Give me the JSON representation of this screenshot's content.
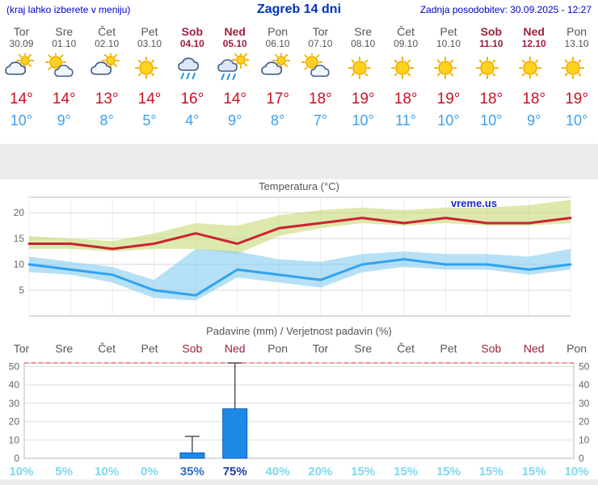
{
  "header": {
    "menu_hint": "(kraj lahko izberete v meniju)",
    "title": "Zagreb 14 dni",
    "last_updated": "Zadnja posodobitev: 30.09.2025 - 12:27"
  },
  "colors": {
    "accent_blue": "#0000cc",
    "max_temp": "#cc1122",
    "min_temp": "#3aa0f0",
    "weekend": "#a0203c",
    "weekday": "#555555",
    "band_gray": "#ececec"
  },
  "days": [
    {
      "name": "Tor",
      "date": "30.09",
      "weekend": false,
      "icon": "mostly-cloudy",
      "tmax_label": "14°",
      "tmin_label": "10°",
      "prob_label": "10%",
      "prob_color": "#7dd8ef"
    },
    {
      "name": "Sre",
      "date": "01.10",
      "weekend": false,
      "icon": "partly-cloudy",
      "tmax_label": "14°",
      "tmin_label": "9°",
      "prob_label": "5%",
      "prob_color": "#7dd8ef"
    },
    {
      "name": "Čet",
      "date": "02.10",
      "weekend": false,
      "icon": "mostly-cloudy",
      "tmax_label": "13°",
      "tmin_label": "8°",
      "prob_label": "10%",
      "prob_color": "#7dd8ef"
    },
    {
      "name": "Pet",
      "date": "03.10",
      "weekend": false,
      "icon": "sunny",
      "tmax_label": "14°",
      "tmin_label": "5°",
      "prob_label": "0%",
      "prob_color": "#7dd8ef"
    },
    {
      "name": "Sob",
      "date": "04.10",
      "weekend": true,
      "icon": "rain",
      "tmax_label": "16°",
      "tmin_label": "4°",
      "prob_label": "35%",
      "prob_color": "#2f6fc4"
    },
    {
      "name": "Ned",
      "date": "05.10",
      "weekend": true,
      "icon": "rain-sun",
      "tmax_label": "14°",
      "tmin_label": "9°",
      "prob_label": "75%",
      "prob_color": "#1c3fa8"
    },
    {
      "name": "Pon",
      "date": "06.10",
      "weekend": false,
      "icon": "mostly-cloudy",
      "tmax_label": "17°",
      "tmin_label": "8°",
      "prob_label": "40%",
      "prob_color": "#7dd8ef"
    },
    {
      "name": "Tor",
      "date": "07.10",
      "weekend": false,
      "icon": "partly-cloudy",
      "tmax_label": "18°",
      "tmin_label": "7°",
      "prob_label": "20%",
      "prob_color": "#7dd8ef"
    },
    {
      "name": "Sre",
      "date": "08.10",
      "weekend": false,
      "icon": "sunny",
      "tmax_label": "19°",
      "tmin_label": "10°",
      "prob_label": "15%",
      "prob_color": "#7dd8ef"
    },
    {
      "name": "Čet",
      "date": "09.10",
      "weekend": false,
      "icon": "sunny",
      "tmax_label": "18°",
      "tmin_label": "11°",
      "prob_label": "15%",
      "prob_color": "#7dd8ef"
    },
    {
      "name": "Pet",
      "date": "10.10",
      "weekend": false,
      "icon": "sunny",
      "tmax_label": "19°",
      "tmin_label": "10°",
      "prob_label": "15%",
      "prob_color": "#7dd8ef"
    },
    {
      "name": "Sob",
      "date": "11.10",
      "weekend": true,
      "icon": "sunny",
      "tmax_label": "18°",
      "tmin_label": "10°",
      "prob_label": "15%",
      "prob_color": "#7dd8ef"
    },
    {
      "name": "Ned",
      "date": "12.10",
      "weekend": true,
      "icon": "sunny",
      "tmax_label": "18°",
      "tmin_label": "9°",
      "prob_label": "15%",
      "prob_color": "#7dd8ef"
    },
    {
      "name": "Pon",
      "date": "13.10",
      "weekend": false,
      "icon": "sunny",
      "tmax_label": "19°",
      "tmin_label": "10°",
      "prob_label": "10%",
      "prob_color": "#7dd8ef"
    }
  ],
  "chart_data": [
    {
      "type": "line",
      "title": "Temperatura (°C)",
      "watermark": "vreme.us",
      "x_labels": [
        "Tor",
        "Sre",
        "Čet",
        "Pet",
        "Sob",
        "Ned",
        "Pon",
        "Tor",
        "Sre",
        "Čet",
        "Pet",
        "Sob",
        "Ned",
        "Pon"
      ],
      "ylim": [
        0,
        23
      ],
      "yticks": [
        5,
        10,
        15,
        20
      ],
      "series": [
        {
          "name": "max-temp",
          "color": "#cc2233",
          "values": [
            14,
            14,
            13,
            14,
            16,
            14,
            17,
            18,
            19,
            18,
            19,
            18,
            18,
            19
          ]
        },
        {
          "name": "min-temp",
          "color": "#2fa3f0",
          "values": [
            10,
            9,
            8,
            5,
            4,
            9,
            8,
            7,
            10,
            11,
            10,
            10,
            9,
            10
          ]
        }
      ],
      "bands": [
        {
          "name": "max-range",
          "color": "#c7db74",
          "upper": [
            15.5,
            15,
            14.5,
            16,
            18,
            17.5,
            19.5,
            20.5,
            21,
            20.5,
            21,
            21,
            21.5,
            22.5
          ],
          "lower": [
            13,
            13,
            12.5,
            13,
            13,
            12,
            15.5,
            17,
            18,
            17.5,
            18,
            17.5,
            17.5,
            18
          ]
        },
        {
          "name": "min-range",
          "color": "#85cbee",
          "upper": [
            11.5,
            10.5,
            9.5,
            7,
            13,
            12.5,
            11,
            10.5,
            12,
            12.5,
            12,
            12,
            11.5,
            13
          ],
          "lower": [
            8.5,
            8,
            6.5,
            3.5,
            3,
            7.5,
            6.5,
            5.5,
            8.5,
            9.5,
            9,
            9,
            8,
            9
          ]
        }
      ]
    },
    {
      "type": "bar",
      "title": "Padavine (mm) / Verjetnost padavin (%)",
      "categories": [
        "Tor",
        "Sre",
        "Čet",
        "Pet",
        "Sob",
        "Ned",
        "Pon",
        "Tor",
        "Sre",
        "Čet",
        "Pet",
        "Sob",
        "Ned",
        "Pon"
      ],
      "values_mm": [
        0,
        0,
        0,
        0,
        3,
        27,
        0,
        0,
        0,
        0,
        0,
        0,
        0,
        0
      ],
      "whisker_mm": [
        0,
        0,
        0,
        0,
        12,
        52,
        0,
        0,
        0,
        0,
        0,
        0,
        0,
        0
      ],
      "probability_pct": [
        10,
        5,
        10,
        0,
        35,
        75,
        40,
        20,
        15,
        15,
        15,
        15,
        15,
        10
      ],
      "ylim": [
        0,
        52
      ],
      "yticks": [
        0,
        10,
        20,
        30,
        40,
        50
      ],
      "bar_color": "#1e88e5"
    }
  ]
}
